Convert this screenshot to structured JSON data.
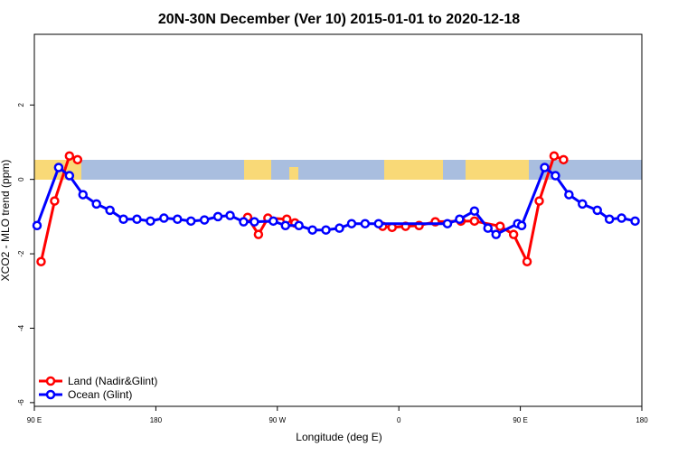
{
  "chart_data": {
    "type": "line",
    "title": "20N-30N December (Ver 10)   2015-01-01 to 2020-12-18",
    "x_label": "Longitude (deg E)",
    "y_label": "XCO2 - MLO trend (ppm)",
    "xlim": [
      90,
      540
    ],
    "ylim": [
      -6.1,
      3.9
    ],
    "xticks": [
      {
        "value": 90,
        "label": "90 E"
      },
      180,
      {
        "value": 270,
        "label": "90 W"
      },
      {
        "value": 360,
        "label": "0"
      },
      {
        "value": 450,
        "label": "90 E"
      },
      {
        "value": 540,
        "label": "180"
      }
    ],
    "yticks": [
      2,
      0,
      -2,
      -4,
      -6
    ],
    "legend": "bottom-left",
    "series": [
      {
        "name": "Land (Nadir&Glint)",
        "color": "#ff0000",
        "x": [
          95,
          105,
          116,
          122,
          null,
          248,
          256,
          263,
          277,
          283,
          null,
          348,
          355,
          365,
          375,
          387,
          406,
          416,
          435,
          445,
          455,
          464,
          475,
          482
        ],
        "values": [
          -2.21,
          -0.58,
          0.63,
          0.53,
          null,
          -1.02,
          -1.48,
          -1.04,
          -1.07,
          -1.17,
          null,
          -1.26,
          -1.29,
          -1.26,
          -1.24,
          -1.14,
          -1.12,
          -1.12,
          -1.26,
          -1.48,
          -2.21,
          -0.58,
          0.63,
          0.53
        ]
      },
      {
        "name": "Ocean (Glint)",
        "color": "#0000ff",
        "x": [
          92,
          108,
          116,
          126,
          136,
          146,
          156,
          166,
          176,
          186,
          196,
          206,
          216,
          226,
          235,
          245,
          253,
          267,
          276,
          286,
          296,
          306,
          316,
          325,
          335,
          345,
          396,
          405,
          416,
          426,
          432,
          448,
          451,
          468,
          476,
          486,
          496,
          507,
          516,
          525,
          535
        ],
        "values": [
          -1.24,
          0.32,
          0.1,
          -0.41,
          -0.66,
          -0.83,
          -1.07,
          -1.07,
          -1.12,
          -1.04,
          -1.07,
          -1.12,
          -1.09,
          -1.0,
          -0.97,
          -1.14,
          -1.14,
          -1.12,
          -1.24,
          -1.24,
          -1.36,
          -1.36,
          -1.31,
          -1.19,
          -1.19,
          -1.19,
          -1.19,
          -1.07,
          -0.85,
          -1.31,
          -1.48,
          -1.19,
          -1.24,
          0.32,
          0.1,
          -0.41,
          -0.66,
          -0.83,
          -1.07,
          -1.04,
          -1.12
        ]
      }
    ]
  }
}
